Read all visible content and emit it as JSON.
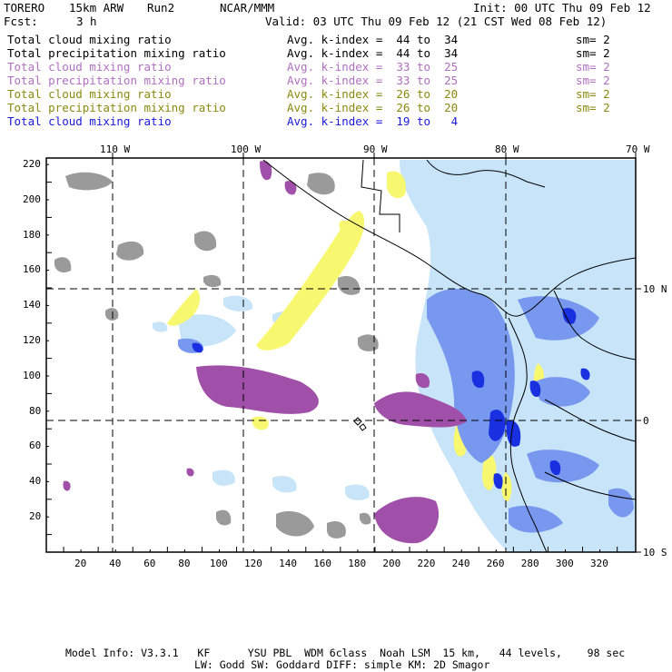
{
  "header": {
    "model": "TORERO",
    "resolution": "15km ARW",
    "run": "Run2",
    "org": "NCAR/MMM",
    "init": "Init: 00 UTC Thu 09 Feb 12",
    "fcst_label": "Fcst:",
    "fcst_value": "3 h",
    "valid": "Valid: 03 UTC Thu 09 Feb 12 (21 CST Wed 08 Feb 12)"
  },
  "legend": [
    {
      "field": "Total cloud mixing ratio",
      "kindex": "Avg. k-index =  44 to  34",
      "sm": "sm= 2",
      "color": "#000000"
    },
    {
      "field": "Total precipitation mixing ratio",
      "kindex": "Avg. k-index =  44 to  34",
      "sm": "sm= 2",
      "color": "#000000"
    },
    {
      "field": "Total cloud mixing ratio",
      "kindex": "Avg. k-index =  33 to  25",
      "sm": "sm= 2",
      "color": "#b070c0"
    },
    {
      "field": "Total precipitation mixing ratio",
      "kindex": "Avg. k-index =  33 to  25",
      "sm": "sm= 2",
      "color": "#b070c0"
    },
    {
      "field": "Total cloud mixing ratio",
      "kindex": "Avg. k-index =  26 to  20",
      "sm": "sm= 2",
      "color": "#8a8a10"
    },
    {
      "field": "Total precipitation mixing ratio",
      "kindex": "Avg. k-index =  26 to  20",
      "sm": "sm= 2",
      "color": "#8a8a10"
    },
    {
      "field": "Total cloud mixing ratio",
      "kindex": "Avg. k-index =  19 to   4",
      "sm": "",
      "color": "#1a1ad8"
    }
  ],
  "map": {
    "lon_labels": [
      "110 W",
      "100 W",
      "90 W",
      "80 W",
      "70 W"
    ],
    "lat_labels": [
      "10 N",
      "0",
      "10 S"
    ],
    "x_ticks": [
      "20",
      "40",
      "60",
      "80",
      "100",
      "120",
      "140",
      "160",
      "180",
      "200",
      "220",
      "240",
      "260",
      "280",
      "300",
      "320"
    ],
    "y_ticks": [
      "220",
      "200",
      "180",
      "160",
      "140",
      "120",
      "100",
      "80",
      "60",
      "40",
      "20"
    ],
    "colors": {
      "gray": "#9a9a9a",
      "purple": "#a050a8",
      "yellow": "#f8f870",
      "lightblue": "#c8e4f8",
      "midblue": "#7898f0",
      "darkblue": "#1830e0"
    }
  },
  "footer": {
    "line1": "Model Info: V3.3.1   KF      YSU PBL  WDM 6class  Noah LSM  15 km,   44 levels,    98 sec",
    "line2": "LW: Godd SW: Goddard DIFF: simple KM: 2D Smagor"
  }
}
